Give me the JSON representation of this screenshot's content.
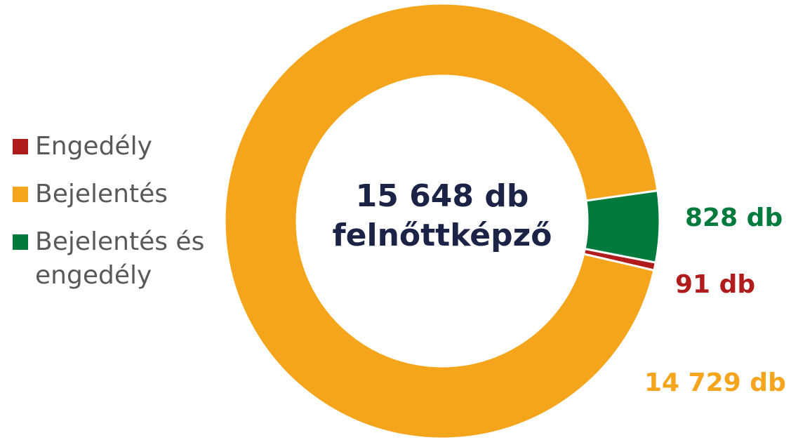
{
  "chart_data": {
    "type": "pie",
    "categories": [
      "Engedély",
      "Bejelentés",
      "Bejelentés és engedély"
    ],
    "values": [
      91,
      14729,
      828
    ],
    "value_labels": [
      "91 db",
      "14 729 db",
      "828 db"
    ],
    "colors": [
      "#b01c1c",
      "#f5a51b",
      "#007a3d"
    ],
    "annotations": [
      "15 648 db",
      "felnőttképző"
    ],
    "donut": true,
    "legend": "left"
  }
}
